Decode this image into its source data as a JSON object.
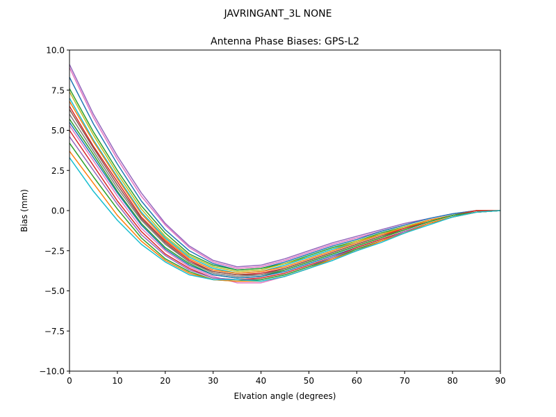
{
  "suptitle": "JAVRINGANT_3L   NONE",
  "chart_data": {
    "type": "line",
    "title": "Antenna Phase Biases: GPS-L2",
    "xlabel": "Elvation angle (degrees)",
    "ylabel": "Bias (mm)",
    "xlim": [
      0,
      90
    ],
    "ylim": [
      -10,
      10
    ],
    "xticks": [
      0,
      10,
      20,
      30,
      40,
      50,
      60,
      70,
      80,
      90
    ],
    "xtick_labels": [
      "0",
      "10",
      "20",
      "30",
      "40",
      "50",
      "60",
      "70",
      "80",
      "90"
    ],
    "yticks": [
      -10,
      -7.5,
      -5,
      -2.5,
      0,
      2.5,
      5,
      7.5,
      10
    ],
    "ytick_labels": [
      "−10.0",
      "−7.5",
      "−5.0",
      "−2.5",
      "0.0",
      "2.5",
      "5.0",
      "7.5",
      "10.0"
    ],
    "grid": false,
    "legend": "none",
    "x": [
      0,
      5,
      10,
      15,
      20,
      25,
      30,
      35,
      40,
      45,
      50,
      55,
      60,
      65,
      70,
      75,
      80,
      85,
      90
    ],
    "series": [
      {
        "color": "#9467bd",
        "values": [
          9.1,
          6.0,
          3.4,
          1.1,
          -0.8,
          -2.2,
          -3.1,
          -3.5,
          -3.4,
          -3.0,
          -2.5,
          -2.0,
          -1.6,
          -1.2,
          -0.8,
          -0.5,
          -0.2,
          0.0,
          0.0
        ]
      },
      {
        "color": "#e377c2",
        "values": [
          8.9,
          5.8,
          3.2,
          0.9,
          -0.9,
          -2.3,
          -3.2,
          -3.6,
          -3.5,
          -3.1,
          -2.6,
          -2.1,
          -1.7,
          -1.3,
          -0.9,
          -0.5,
          -0.2,
          0.0,
          0.0
        ]
      },
      {
        "color": "#1f77b4",
        "values": [
          8.3,
          5.4,
          2.9,
          0.6,
          -1.2,
          -2.5,
          -3.3,
          -3.7,
          -3.6,
          -3.2,
          -2.7,
          -2.2,
          -1.8,
          -1.3,
          -0.9,
          -0.5,
          -0.2,
          0.0,
          0.0
        ]
      },
      {
        "color": "#2ca02c",
        "values": [
          7.6,
          4.9,
          2.5,
          0.3,
          -1.4,
          -2.7,
          -3.4,
          -3.7,
          -3.6,
          -3.3,
          -2.8,
          -2.3,
          -1.9,
          -1.4,
          -1.0,
          -0.6,
          -0.3,
          0.0,
          0.0
        ]
      },
      {
        "color": "#bcbd22",
        "values": [
          7.4,
          4.7,
          2.3,
          0.1,
          -1.6,
          -2.8,
          -3.5,
          -3.8,
          -3.7,
          -3.3,
          -2.9,
          -2.4,
          -1.9,
          -1.5,
          -1.0,
          -0.6,
          -0.3,
          0.0,
          0.0
        ]
      },
      {
        "color": "#17becf",
        "values": [
          7.0,
          4.4,
          2.1,
          -0.1,
          -1.7,
          -2.9,
          -3.6,
          -3.9,
          -3.8,
          -3.4,
          -2.9,
          -2.4,
          -2.0,
          -1.5,
          -1.1,
          -0.6,
          -0.3,
          0.0,
          0.0
        ]
      },
      {
        "color": "#ff7f0e",
        "values": [
          6.8,
          4.3,
          2.0,
          -0.2,
          -1.8,
          -3.0,
          -3.7,
          -3.9,
          -3.8,
          -3.5,
          -3.0,
          -2.5,
          -2.0,
          -1.5,
          -1.1,
          -0.6,
          -0.3,
          0.0,
          0.0
        ]
      },
      {
        "color": "#d62728",
        "values": [
          6.5,
          4.0,
          1.8,
          -0.4,
          -1.9,
          -3.1,
          -3.8,
          -4.0,
          -3.9,
          -3.6,
          -3.1,
          -2.6,
          -2.1,
          -1.6,
          -1.1,
          -0.7,
          -0.3,
          0.0,
          0.0
        ]
      },
      {
        "color": "#8c564b",
        "values": [
          6.3,
          3.9,
          1.6,
          -0.5,
          -2.0,
          -3.2,
          -3.8,
          -4.0,
          -4.0,
          -3.6,
          -3.1,
          -2.6,
          -2.1,
          -1.6,
          -1.2,
          -0.7,
          -0.3,
          -0.1,
          0.0
        ]
      },
      {
        "color": "#7f7f7f",
        "values": [
          6.0,
          3.7,
          1.4,
          -0.6,
          -2.1,
          -3.2,
          -3.9,
          -4.1,
          -4.0,
          -3.7,
          -3.2,
          -2.7,
          -2.2,
          -1.7,
          -1.2,
          -0.7,
          -0.3,
          -0.1,
          0.0
        ]
      },
      {
        "color": "#2ca02c",
        "values": [
          5.7,
          3.5,
          1.2,
          -0.8,
          -2.3,
          -3.3,
          -4.0,
          -4.2,
          -4.1,
          -3.7,
          -3.2,
          -2.7,
          -2.2,
          -1.7,
          -1.2,
          -0.7,
          -0.3,
          -0.1,
          0.0
        ]
      },
      {
        "color": "#1f77b4",
        "values": [
          5.5,
          3.3,
          1.1,
          -0.9,
          -2.4,
          -3.4,
          -4.0,
          -4.2,
          -4.1,
          -3.8,
          -3.3,
          -2.8,
          -2.3,
          -1.8,
          -1.3,
          -0.8,
          -0.4,
          -0.1,
          0.0
        ]
      },
      {
        "color": "#e377c2",
        "values": [
          5.3,
          3.1,
          0.9,
          -1.1,
          -2.5,
          -3.5,
          -4.1,
          -4.5,
          -4.5,
          -4.1,
          -3.6,
          -3.0,
          -2.5,
          -1.9,
          -1.3,
          -0.8,
          -0.4,
          -0.1,
          0.0
        ]
      },
      {
        "color": "#d62728",
        "values": [
          5.0,
          2.8,
          0.6,
          -1.3,
          -2.7,
          -3.6,
          -4.2,
          -4.3,
          -4.2,
          -3.9,
          -3.4,
          -2.9,
          -2.3,
          -1.8,
          -1.3,
          -0.8,
          -0.4,
          -0.1,
          0.0
        ]
      },
      {
        "color": "#9467bd",
        "values": [
          4.6,
          2.5,
          0.4,
          -1.5,
          -2.8,
          -3.7,
          -4.2,
          -4.3,
          -4.3,
          -4.0,
          -3.5,
          -2.9,
          -2.4,
          -1.9,
          -1.3,
          -0.8,
          -0.4,
          -0.1,
          0.0
        ]
      },
      {
        "color": "#2ca02c",
        "values": [
          4.2,
          2.1,
          0.1,
          -1.7,
          -3.0,
          -3.8,
          -4.3,
          -4.4,
          -4.3,
          -4.0,
          -3.5,
          -3.0,
          -2.4,
          -1.9,
          -1.4,
          -0.8,
          -0.4,
          -0.1,
          0.0
        ]
      },
      {
        "color": "#ff7f0e",
        "values": [
          3.7,
          1.7,
          -0.3,
          -1.9,
          -3.1,
          -3.9,
          -4.3,
          -4.4,
          -4.4,
          -4.1,
          -3.6,
          -3.0,
          -2.5,
          -1.9,
          -1.4,
          -0.8,
          -0.4,
          -0.1,
          0.0
        ]
      },
      {
        "color": "#17becf",
        "values": [
          3.3,
          1.2,
          -0.6,
          -2.1,
          -3.2,
          -4.0,
          -4.3,
          -4.3,
          -4.4,
          -4.1,
          -3.6,
          -3.1,
          -2.5,
          -2.0,
          -1.4,
          -0.9,
          -0.4,
          -0.1,
          0.0
        ]
      }
    ]
  }
}
